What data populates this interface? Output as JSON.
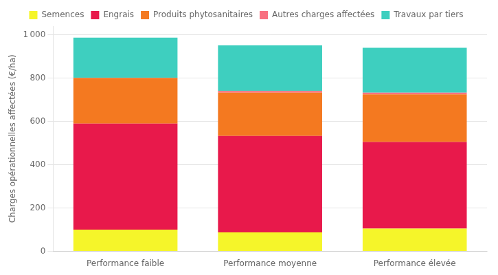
{
  "chart_data": {
    "type": "bar",
    "stacked": true,
    "categories": [
      "Performance faible",
      "Performance moyenne",
      "Performance élevée"
    ],
    "series": [
      {
        "name": "Semences",
        "color": "#F5F52A",
        "values": [
          100,
          88,
          105
        ]
      },
      {
        "name": "Engrais",
        "color": "#E8194B",
        "values": [
          490,
          445,
          400
        ]
      },
      {
        "name": "Produits phytosanitaires",
        "color": "#F47920",
        "values": [
          210,
          200,
          220
        ]
      },
      {
        "name": "Autres charges affectées",
        "color": "#F87080",
        "values": [
          2,
          8,
          8
        ]
      },
      {
        "name": "Travaux par tiers",
        "color": "#3ECFBF",
        "values": [
          185,
          210,
          207
        ]
      }
    ],
    "ylabel": "Charges opérationnelles affectées (€/ha)",
    "ylim": [
      0,
      1040
    ],
    "yticks": [
      0,
      200,
      400,
      600,
      800,
      {
        "value": 1000,
        "label": "1 000"
      }
    ],
    "grid": true,
    "legend": "top"
  }
}
